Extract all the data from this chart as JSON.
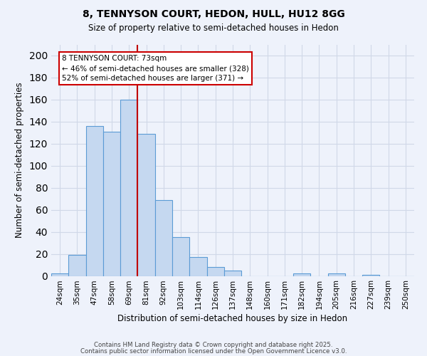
{
  "title": "8, TENNYSON COURT, HEDON, HULL, HU12 8GG",
  "subtitle": "Size of property relative to semi-detached houses in Hedon",
  "xlabel": "Distribution of semi-detached houses by size in Hedon",
  "ylabel": "Number of semi-detached properties",
  "footer1": "Contains HM Land Registry data © Crown copyright and database right 2025.",
  "footer2": "Contains public sector information licensed under the Open Government Licence v3.0.",
  "bin_labels": [
    "24sqm",
    "35sqm",
    "47sqm",
    "58sqm",
    "69sqm",
    "81sqm",
    "92sqm",
    "103sqm",
    "114sqm",
    "126sqm",
    "137sqm",
    "148sqm",
    "160sqm",
    "171sqm",
    "182sqm",
    "194sqm",
    "205sqm",
    "216sqm",
    "227sqm",
    "239sqm",
    "250sqm"
  ],
  "counts": [
    2,
    19,
    136,
    131,
    160,
    129,
    69,
    35,
    17,
    8,
    5,
    0,
    0,
    0,
    2,
    0,
    2,
    0,
    1,
    0,
    0
  ],
  "bar_color": "#c5d8f0",
  "bar_edge_color": "#5b9bd5",
  "grid_color": "#d0d8e8",
  "bg_color": "#eef2fb",
  "property_line_color": "#c00000",
  "annotation_line1": "8 TENNYSON COURT: 73sqm",
  "annotation_line2": "← 46% of semi-detached houses are smaller (328)",
  "annotation_line3": "52% of semi-detached houses are larger (371) →",
  "annotation_box_color": "#ffffff",
  "annotation_box_edge": "#cc0000",
  "ylim": [
    0,
    210
  ],
  "yticks": [
    0,
    20,
    40,
    60,
    80,
    100,
    120,
    140,
    160,
    180,
    200
  ],
  "line_bar_index": 4.5
}
